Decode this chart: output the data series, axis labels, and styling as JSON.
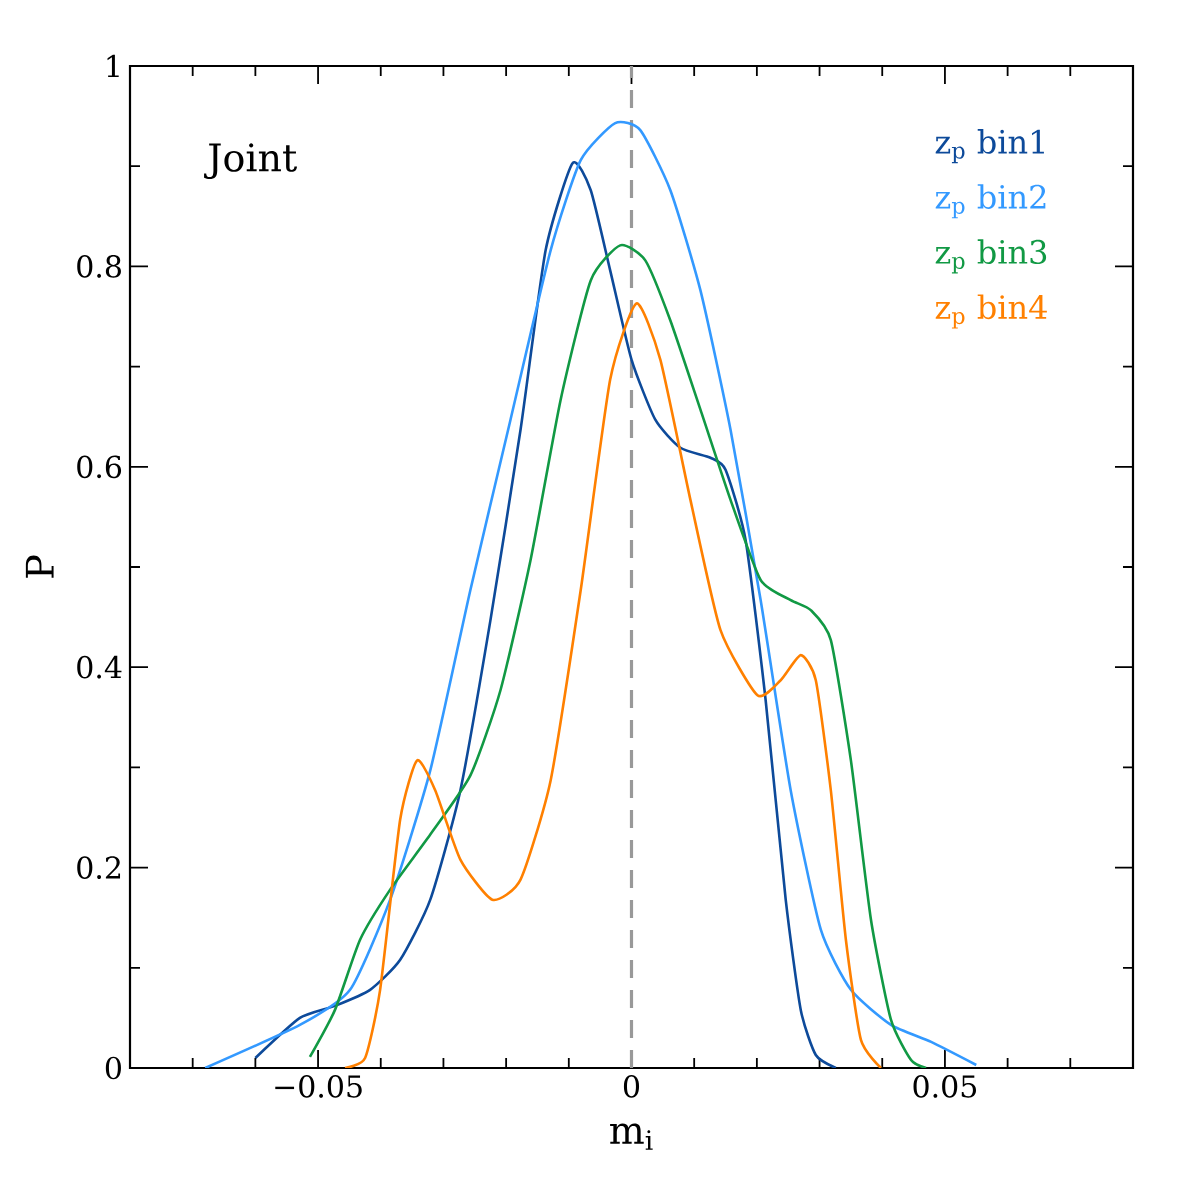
{
  "chart_data": {
    "type": "line",
    "xlabel": "m$_{i}$",
    "ylabel": "P",
    "annotations": [
      "Joint"
    ],
    "xlim": [
      -0.08,
      0.08
    ],
    "ylim": [
      0,
      1
    ],
    "xticks": [
      {
        "value": -0.07,
        "label": null
      },
      {
        "value": -0.06,
        "label": null
      },
      {
        "value": -0.05,
        "label": "−0.05"
      },
      {
        "value": -0.04,
        "label": null
      },
      {
        "value": -0.03,
        "label": null
      },
      {
        "value": -0.02,
        "label": null
      },
      {
        "value": -0.01,
        "label": null
      },
      0,
      {
        "value": 0.01,
        "label": null
      },
      {
        "value": 0.02,
        "label": null
      },
      {
        "value": 0.03,
        "label": null
      },
      {
        "value": 0.04,
        "label": null
      },
      0.05,
      {
        "value": 0.06,
        "label": null
      },
      {
        "value": 0.07,
        "label": null
      }
    ],
    "yticks": [
      0,
      {
        "value": 0.1,
        "label": null
      },
      0.2,
      {
        "value": 0.3,
        "label": null
      },
      0.4,
      {
        "value": 0.5,
        "label": null
      },
      0.6,
      {
        "value": 0.7,
        "label": null
      },
      0.8,
      {
        "value": 0.9,
        "label": null
      },
      1
    ],
    "legend": "top right",
    "marker": "none",
    "line_style": "solid",
    "grid": false,
    "ref_lines": [
      {
        "axis": "x",
        "value": 0,
        "color": "#999999",
        "line_style": "dashed"
      }
    ],
    "series": [
      {
        "name": "z$_{p}$ bin1",
        "color": "#0d4a9a",
        "x": [
          -0.06,
          -0.0529,
          -0.0473,
          -0.0417,
          -0.0369,
          -0.0321,
          -0.0273,
          -0.0225,
          -0.0177,
          -0.0137,
          -0.0094,
          -0.0065,
          -0.0034,
          0,
          0.0038,
          0.0078,
          0.0126,
          0.015,
          0.0182,
          0.0214,
          0.0246,
          0.027,
          0.0294,
          0.0326
        ],
        "values": [
          0.01,
          0.05,
          0.062,
          0.078,
          0.108,
          0.168,
          0.277,
          0.447,
          0.637,
          0.816,
          0.903,
          0.876,
          0.796,
          0.707,
          0.647,
          0.619,
          0.609,
          0.597,
          0.527,
          0.367,
          0.168,
          0.058,
          0.013,
          0
        ]
      },
      {
        "name": "z$_{p}$ bin2",
        "color": "#3399ff",
        "x": [
          -0.068,
          -0.0529,
          -0.0449,
          -0.0385,
          -0.0321,
          -0.0257,
          -0.0193,
          -0.0129,
          -0.0081,
          -0.0026,
          0.0014,
          0.0062,
          0.011,
          0.0158,
          0.0206,
          0.0254,
          0.0302,
          0.035,
          0.0414,
          0.0478,
          0.055
        ],
        "values": [
          0,
          0.043,
          0.078,
          0.168,
          0.297,
          0.477,
          0.647,
          0.816,
          0.906,
          0.943,
          0.936,
          0.876,
          0.776,
          0.637,
          0.467,
          0.277,
          0.138,
          0.078,
          0.043,
          0.026,
          0.003
        ]
      },
      {
        "name": "z$_{p}$ bin3",
        "color": "#119944",
        "x": [
          -0.0513,
          -0.0473,
          -0.0433,
          -0.0385,
          -0.0321,
          -0.0257,
          -0.0209,
          -0.0161,
          -0.0113,
          -0.0065,
          -0.0018,
          0.0022,
          0.0062,
          0.011,
          0.0158,
          0.0206,
          0.0254,
          0.0286,
          0.0318,
          0.035,
          0.0382,
          0.0414,
          0.0446,
          0.047
        ],
        "values": [
          0.011,
          0.058,
          0.128,
          0.178,
          0.233,
          0.292,
          0.377,
          0.507,
          0.667,
          0.786,
          0.821,
          0.806,
          0.746,
          0.657,
          0.567,
          0.487,
          0.467,
          0.457,
          0.427,
          0.307,
          0.148,
          0.048,
          0.008,
          0
        ]
      },
      {
        "name": "z$_{p}$ bin4",
        "color": "#ff8000",
        "x": [
          -0.0457,
          -0.0425,
          -0.0401,
          -0.0369,
          -0.0342,
          -0.0313,
          -0.0273,
          -0.0222,
          -0.0177,
          -0.0129,
          -0.0081,
          -0.0034,
          0.0008,
          0.0046,
          0.0094,
          0.0142,
          0.0201,
          0.0238,
          0.027,
          0.0294,
          0.0318,
          0.0342,
          0.0366,
          0.0398
        ],
        "values": [
          0,
          0.01,
          0.078,
          0.248,
          0.307,
          0.277,
          0.208,
          0.168,
          0.188,
          0.287,
          0.477,
          0.687,
          0.763,
          0.707,
          0.567,
          0.437,
          0.372,
          0.387,
          0.412,
          0.387,
          0.277,
          0.128,
          0.028,
          0
        ]
      }
    ]
  }
}
